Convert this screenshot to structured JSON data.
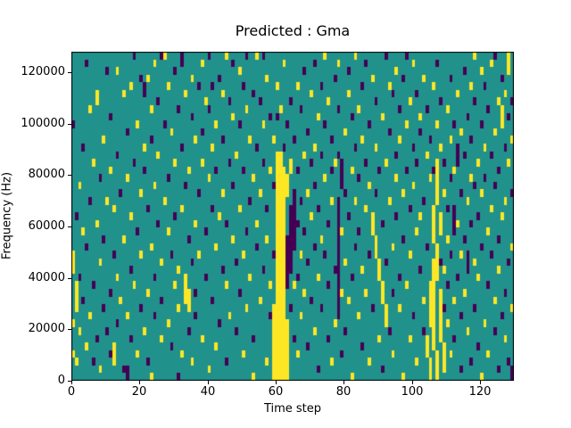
{
  "figure": {
    "background": "#ffffff"
  },
  "chart_data": {
    "type": "heatmap",
    "title": "Predicted : Gma",
    "xlabel": "Time step",
    "ylabel": "Frequency (Hz)",
    "xlim": [
      0,
      130
    ],
    "ylim": [
      0,
      128000
    ],
    "x_ticks": [
      0,
      20,
      40,
      60,
      80,
      100,
      120
    ],
    "y_ticks": [
      0,
      20000,
      40000,
      60000,
      80000,
      100000,
      120000
    ],
    "grid_cols": 130,
    "grid_rows": 43,
    "grid": "off",
    "legend": "none",
    "colors": {
      "low": "#440154",
      "mid": "#21918c",
      "high": "#fde725",
      "spine": "#000000"
    },
    "value_levels": {
      "low": 0,
      "mid": 1,
      "high": 2
    },
    "background_value": 1,
    "cells_note": "cells keyed by time-step column; values are row indices from bottom (row 0 = 0 Hz) or [lo,hi] inclusive ranges",
    "cells": {
      "low": {
        "0": [
          33
        ],
        "1": [
          21
        ],
        "2": [
          13
        ],
        "3": [
          30,
          10
        ],
        "4": [
          41,
          17
        ],
        "5": [
          23
        ],
        "6": [
          12,
          2
        ],
        "7": [
          5
        ],
        "8": [
          26
        ],
        "9": [
          18,
          9
        ],
        "10": [
          40,
          6
        ],
        "11": [
          34,
          11,
          3
        ],
        "12": [
          16
        ],
        "13": [
          29,
          7
        ],
        "14": [
          24
        ],
        "15": [
          1
        ],
        "16": [
          [
            0,
            1
          ],
          32
        ],
        "17": [
          14,
          5
        ],
        "18": [
          42,
          28
        ],
        "19": [
          19
        ],
        "20": [
          39,
          9
        ],
        "21": [
          [
            37,
            38
          ],
          27
        ],
        "22": [
          22,
          2
        ],
        "23": [
          31
        ],
        "24": [
          13,
          8
        ],
        "25": [
          36,
          20
        ],
        "26": [
          42,
          10
        ],
        "27": [
          33
        ],
        "28": [
          26
        ],
        "29": [
          16,
          4
        ],
        "30": [
          40,
          21
        ],
        "31": [
          0,
          35
        ],
        "32": [
          [
            41,
            42
          ],
          30
        ],
        "33": [
          25
        ],
        "34": [
          18,
          6
        ],
        "35": [
          34,
          15
        ],
        "36": [
          11,
          8
        ],
        "37": [
          38,
          24
        ],
        "38": [
          32
        ],
        "39": [
          19,
          13
        ],
        "40": [
          42,
          35
        ],
        "41": [
          38,
          22,
          10
        ],
        "42": [
          27
        ],
        "43": [
          39,
          7
        ],
        "44": [
          31,
          14
        ],
        "45": [
          20,
          2
        ],
        "46": [
          36,
          28
        ],
        "47": [
          41,
          25
        ],
        "48": [
          15,
          6
        ],
        "49": [
          33,
          11
        ],
        "50": [
          38,
          27
        ],
        "51": [
          42,
          19
        ],
        "52": [
          23
        ],
        "53": [
          37,
          5
        ],
        "54": [
          30,
          17
        ],
        "55": [
          36
        ],
        "56": [
          42,
          28,
          14
        ],
        "57": [
          22
        ],
        "58": [
          34,
          8
        ],
        "59": [
          25,
          16
        ],
        "60": [
          34
        ],
        "62": [
          30
        ],
        "63": [
          [
            12,
            18
          ],
          33
        ],
        "64": [
          [
            14,
            22
          ],
          36,
          9
        ],
        "65": [
          [
            17,
            24
          ],
          31,
          5
        ],
        "66": [
          27,
          20,
          13
        ],
        "67": [
          35,
          23
        ],
        "68": [
          40,
          19
        ],
        "69": [
          32,
          15,
          4
        ],
        "70": [
          28,
          10
        ],
        "71": [
          41,
          25,
          17
        ],
        "72": [
          22,
          1
        ],
        "73": [
          38,
          29,
          9
        ],
        "74": [
          33,
          16
        ],
        "75": [
          20,
          12,
          5
        ],
        "76": [
          31,
          27
        ],
        "77": [
          39,
          14
        ],
        "78": [
          [
            8,
            23
          ],
          35,
          29
        ],
        "79": [
          [
            25,
            28
          ],
          3
        ],
        "80": [
          24,
          6
        ],
        "81": [
          40,
          21
        ],
        "82": [
          34,
          13
        ],
        "83": [
          30,
          17
        ],
        "84": [
          26,
          19
        ],
        "85": [
          38,
          4
        ],
        "86": [
          41,
          28
        ],
        "87": [
          33,
          16
        ],
        "88": [
          9
        ],
        "89": [
          36,
          24
        ],
        "90": [
          27
        ],
        "91": [
          20,
          1
        ],
        "92": [
          42,
          15
        ],
        "93": [
          32,
          6
        ],
        "94": [
          37,
          11
        ],
        "95": [
          29,
          21
        ],
        "96": [
          35,
          13
        ],
        "97": [
          39,
          18
        ],
        "98": [
          42,
          27
        ],
        "99": [
          22
        ],
        "100": [
          30,
          8
        ],
        "101": [
          37,
          28
        ],
        "102": [
          32,
          14
        ],
        "103": [
          23,
          6
        ],
        "104": [
          35,
          17
        ],
        "105": [
          31
        ],
        "106": [
          27
        ],
        "107": [
          41
        ],
        "108": [
          36,
          15
        ],
        "109": [
          28,
          9
        ],
        "110": [
          22,
          12
        ],
        "111": [
          39,
          26,
          16
        ],
        "112": [
          [
            19,
            22
          ],
          33,
          5
        ],
        "113": [
          [
            28,
            30
          ],
          13
        ],
        "114": [
          24,
          8,
          1
        ],
        "115": [
          40,
          29,
          18
        ],
        "116": [
          [
            14,
            16
          ],
          34
        ],
        "117": [
          31,
          20,
          2
        ],
        "118": [
          36,
          25,
          9
        ],
        "119": [
          21,
          4
        ],
        "120": [
          33,
          17
        ],
        "121": [
          38,
          26
        ],
        "122": [
          35,
          12
        ],
        "123": [
          29,
          16
        ],
        "124": [
          42,
          25,
          6
        ],
        "125": [
          27,
          18,
          1
        ],
        "126": [
          39,
          8
        ],
        "127": [
          30,
          11
        ],
        "128": [
          34,
          15,
          2
        ],
        "129": [
          [
            0,
            1
          ],
          24,
          36
        ]
      },
      "high": {
        "0": [
          [
            14,
            16
          ],
          7,
          3
        ],
        "1": [
          [
            9,
            12
          ],
          2
        ],
        "2": [
          6,
          25
        ],
        "3": [
          19
        ],
        "4": [
          4
        ],
        "5": [
          35,
          8
        ],
        "6": [
          28
        ],
        "7": [
          [
            36,
            37
          ],
          20
        ],
        "8": [
          15,
          1
        ],
        "9": [
          31
        ],
        "10": [
          23
        ],
        "11": [
          27
        ],
        "12": [
          [
            2,
            4
          ],
          22
        ],
        "13": [
          40,
          13
        ],
        "14": [
          10
        ],
        "15": [
          37,
          18
        ],
        "16": [
          26,
          8
        ],
        "17": [
          38,
          21
        ],
        "18": [
          12
        ],
        "19": [
          33,
          3
        ],
        "20": [
          24,
          16
        ],
        "21": [
          30,
          6
        ],
        "22": [
          39,
          11
        ],
        "23": [
          0,
          35,
          17
        ],
        "24": [
          41,
          25
        ],
        "25": [
          29
        ],
        "26": [
          15,
          5
        ],
        "27": [
          42,
          23
        ],
        "28": [
          38,
          19,
          7
        ],
        "29": [
          32
        ],
        "30": [
          28,
          12
        ],
        "31": [
          14,
          9
        ],
        "32": [
          22,
          3
        ],
        "33": [
          [
            10,
            13
          ],
          37
        ],
        "34": [
          [
            9,
            11
          ],
          27
        ],
        "35": [
          39,
          2
        ],
        "36": [
          31,
          20
        ],
        "37": [
          16
        ],
        "38": [
          41,
          28,
          5
        ],
        "39": [
          36
        ],
        "40": [
          26,
          1
        ],
        "41": [
          30
        ],
        "42": [
          33,
          17,
          4
        ],
        "43": [
          21
        ],
        "44": [
          37,
          24
        ],
        "45": [
          42,
          12
        ],
        "46": [
          8
        ],
        "47": [
          34,
          18
        ],
        "48": [
          29
        ],
        "49": [
          40,
          22
        ],
        "50": [
          16,
          3
        ],
        "51": [
          35,
          9
        ],
        "52": [
          31,
          13
        ],
        "53": [
          26,
          0
        ],
        "54": [
          42,
          20
        ],
        "55": [
          24,
          10
        ],
        "56": [
          33
        ],
        "57": [
          39,
          18,
          2
        ],
        "58": [
          27,
          12
        ],
        "59": [
          [
            0,
            9
          ],
          31
        ],
        "60": [
          [
            0,
            29
          ],
          38
        ],
        "61": [
          [
            0,
            29
          ],
          35
        ],
        "62": [
          [
            0,
            27
          ],
          41
        ],
        "63": [
          [
            0,
            7
          ],
          [
            24,
            26
          ]
        ],
        "64": [
          [
            27,
            28
          ]
        ],
        "65": [
          12
        ],
        "66": [
          38,
          3
        ],
        "67": [
          16,
          8
        ],
        "68": [
          29,
          11
        ],
        "69": [
          24
        ],
        "70": [
          37,
          21
        ],
        "71": [
          30,
          6
        ],
        "72": [
          34,
          13
        ],
        "73": [
          18
        ],
        "74": [
          42,
          26
        ],
        "75": [
          36
        ],
        "76": [
          23,
          2
        ],
        "77": [
          28,
          7
        ],
        "78": [
          41
        ],
        "79": [
          19,
          11
        ],
        "80": [
          32,
          15
        ],
        "81": [
          37,
          10
        ],
        "82": [
          27,
          0
        ],
        "83": [
          42,
          23
        ],
        "84": [
          35,
          8
        ],
        "85": [
          31,
          14
        ],
        "86": [
          22,
          11
        ],
        "87": [
          25,
          2
        ],
        "88": [
          [
            19,
            21
          ],
          39
        ],
        "89": [
          [
            16,
            18
          ],
          30
        ],
        "90": [
          [
            13,
            15
          ],
          5
        ],
        "91": [
          [
            10,
            12
          ],
          34
        ],
        "92": [
          [
            7,
            9
          ],
          28
        ],
        "93": [
          38,
          23
        ],
        "94": [
          17,
          3
        ],
        "95": [
          40,
          26
        ],
        "96": [
          31,
          9
        ],
        "97": [
          24,
          0
        ],
        "98": [
          33,
          12
        ],
        "99": [
          36,
          16,
          5
        ],
        "100": [
          41,
          25
        ],
        "101": [
          19,
          2
        ],
        "102": [
          34,
          21
        ],
        "103": [
          39,
          10
        ],
        "104": [
          [
            3,
            5
          ],
          29
        ],
        "105": [
          [
            0,
            2
          ],
          [
            7,
            12
          ],
          26
        ],
        "106": [
          [
            4,
            15
          ],
          [
            18,
            22
          ],
          38
        ],
        "107": [
          [
            0,
            3
          ],
          [
            13,
            17
          ],
          [
            23,
            28
          ],
          33
        ],
        "108": [
          [
            5,
            11
          ],
          [
            19,
            21
          ],
          30
        ],
        "109": [
          [
            1,
            4
          ],
          24,
          14
        ],
        "110": [
          35,
          18,
          7
        ],
        "111": [
          31,
          3
        ],
        "112": [
          27,
          10
        ],
        "113": [
          37,
          20
        ],
        "114": [
          32,
          16
        ],
        "115": [
          11
        ],
        "116": [
          23,
          6
        ],
        "117": [
          38,
          26
        ],
        "118": [
          15,
          42
        ],
        "119": [
          28,
          13
        ],
        "120": [
          40,
          24,
          0
        ],
        "121": [
          30,
          7
        ],
        "122": [
          19,
          3
        ],
        "123": [
          41,
          22
        ],
        "124": [
          32,
          10
        ],
        "125": [
          36,
          14
        ],
        "126": [
          [
            33,
            35
          ],
          21
        ],
        "127": [
          37,
          23,
          5
        ],
        "128": [
          [
            40,
            42
          ],
          28
        ],
        "129": [
          31,
          17,
          9
        ]
      }
    }
  }
}
